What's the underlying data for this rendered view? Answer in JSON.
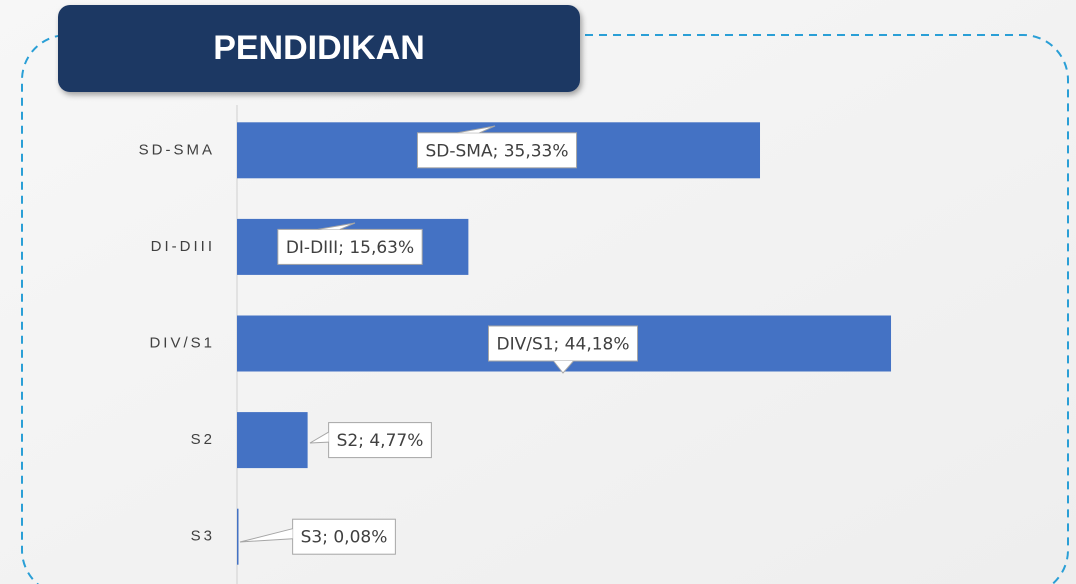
{
  "chart_data": {
    "type": "bar",
    "orientation": "horizontal",
    "title": "PENDIDIKAN",
    "categories": [
      "SD-SMA",
      "DI-DIII",
      "DIV/S1",
      "S2",
      "S3"
    ],
    "values": [
      35.33,
      15.63,
      44.18,
      4.77,
      0.08
    ],
    "value_labels": [
      "SD-SMA; 35,33%",
      "DI-DIII; 15,63%",
      "DIV/S1; 44,18%",
      "S2; 4,77%",
      "S3; 0,08%"
    ],
    "color": "#4472c4",
    "xlim": [
      0,
      56
    ]
  }
}
